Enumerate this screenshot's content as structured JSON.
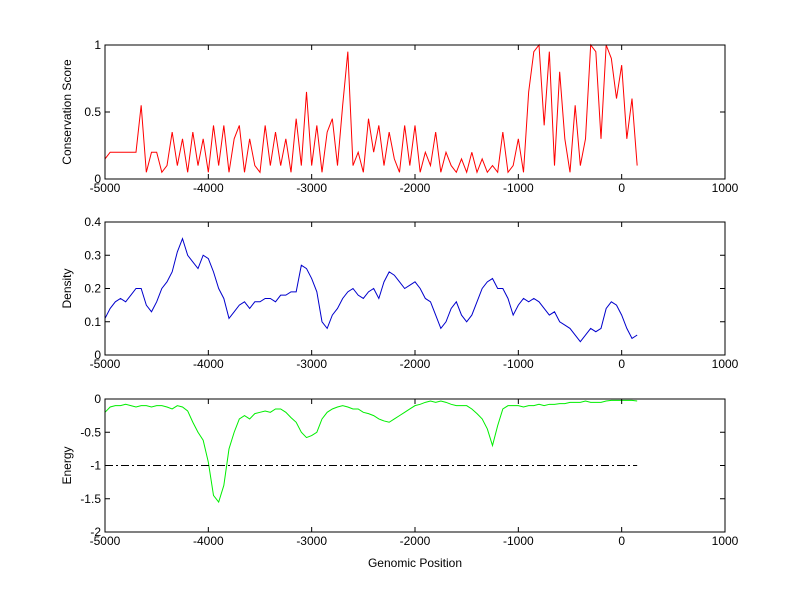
{
  "chart_data": [
    {
      "type": "line",
      "ylabel": "Conservation Score",
      "xlim": [
        -5000,
        1000
      ],
      "ylim": [
        0,
        1
      ],
      "xticks": [
        -5000,
        -4000,
        -3000,
        -2000,
        -1000,
        0,
        1000
      ],
      "yticks": [
        0,
        0.5,
        1
      ],
      "series": [
        {
          "color": "#ff0000",
          "x": [
            -5000,
            -4950,
            -4900,
            -4850,
            -4800,
            -4750,
            -4700,
            -4650,
            -4600,
            -4550,
            -4500,
            -4450,
            -4400,
            -4350,
            -4300,
            -4250,
            -4200,
            -4150,
            -4100,
            -4050,
            -4000,
            -3950,
            -3900,
            -3850,
            -3800,
            -3750,
            -3700,
            -3650,
            -3600,
            -3550,
            -3500,
            -3450,
            -3400,
            -3350,
            -3300,
            -3250,
            -3200,
            -3150,
            -3100,
            -3050,
            -3000,
            -2950,
            -2900,
            -2850,
            -2800,
            -2750,
            -2700,
            -2650,
            -2600,
            -2550,
            -2500,
            -2450,
            -2400,
            -2350,
            -2300,
            -2250,
            -2200,
            -2150,
            -2100,
            -2050,
            -2000,
            -1950,
            -1900,
            -1850,
            -1800,
            -1750,
            -1700,
            -1650,
            -1600,
            -1550,
            -1500,
            -1450,
            -1400,
            -1350,
            -1300,
            -1250,
            -1200,
            -1150,
            -1100,
            -1050,
            -1000,
            -950,
            -900,
            -850,
            -800,
            -750,
            -700,
            -650,
            -600,
            -550,
            -500,
            -450,
            -400,
            -350,
            -300,
            -250,
            -200,
            -150,
            -100,
            -50,
            0,
            50,
            100,
            150
          ],
          "values": [
            0.15,
            0.2,
            0.2,
            0.2,
            0.2,
            0.2,
            0.2,
            0.55,
            0.05,
            0.2,
            0.2,
            0.05,
            0.1,
            0.35,
            0.1,
            0.3,
            0.05,
            0.35,
            0.1,
            0.3,
            0.05,
            0.4,
            0.1,
            0.4,
            0.05,
            0.3,
            0.4,
            0.05,
            0.3,
            0.1,
            0.05,
            0.4,
            0.1,
            0.35,
            0.1,
            0.3,
            0.05,
            0.45,
            0.1,
            0.65,
            0.1,
            0.4,
            0.05,
            0.35,
            0.45,
            0.1,
            0.55,
            0.95,
            0.1,
            0.2,
            0.05,
            0.45,
            0.2,
            0.4,
            0.1,
            0.35,
            0.15,
            0.05,
            0.4,
            0.1,
            0.4,
            0.05,
            0.2,
            0.1,
            0.35,
            0.05,
            0.2,
            0.1,
            0.05,
            0.15,
            0.05,
            0.2,
            0.05,
            0.15,
            0.05,
            0.1,
            0.05,
            0.35,
            0.05,
            0.1,
            0.3,
            0.05,
            0.65,
            0.95,
            1,
            0.4,
            0.95,
            0.1,
            0.8,
            0.3,
            0.05,
            0.55,
            0.1,
            0.3,
            1,
            0.95,
            0.3,
            1,
            0.9,
            0.6,
            0.85,
            0.3,
            0.6,
            0.1
          ]
        }
      ]
    },
    {
      "type": "line",
      "ylabel": "Density",
      "xlim": [
        -5000,
        1000
      ],
      "ylim": [
        0,
        0.4
      ],
      "xticks": [
        -5000,
        -4000,
        -3000,
        -2000,
        -1000,
        0,
        1000
      ],
      "yticks": [
        0,
        0.1,
        0.2,
        0.3,
        0.4
      ],
      "series": [
        {
          "color": "#0000cc",
          "x": [
            -5000,
            -4950,
            -4900,
            -4850,
            -4800,
            -4750,
            -4700,
            -4650,
            -4600,
            -4550,
            -4500,
            -4450,
            -4400,
            -4350,
            -4300,
            -4250,
            -4200,
            -4150,
            -4100,
            -4050,
            -4000,
            -3950,
            -3900,
            -3850,
            -3800,
            -3750,
            -3700,
            -3650,
            -3600,
            -3550,
            -3500,
            -3450,
            -3400,
            -3350,
            -3300,
            -3250,
            -3200,
            -3150,
            -3100,
            -3050,
            -3000,
            -2950,
            -2900,
            -2850,
            -2800,
            -2750,
            -2700,
            -2650,
            -2600,
            -2550,
            -2500,
            -2450,
            -2400,
            -2350,
            -2300,
            -2250,
            -2200,
            -2150,
            -2100,
            -2050,
            -2000,
            -1950,
            -1900,
            -1850,
            -1800,
            -1750,
            -1700,
            -1650,
            -1600,
            -1550,
            -1500,
            -1450,
            -1400,
            -1350,
            -1300,
            -1250,
            -1200,
            -1150,
            -1100,
            -1050,
            -1000,
            -950,
            -900,
            -850,
            -800,
            -750,
            -700,
            -650,
            -600,
            -550,
            -500,
            -450,
            -400,
            -350,
            -300,
            -250,
            -200,
            -150,
            -100,
            -50,
            0,
            50,
            100,
            150
          ],
          "values": [
            0.11,
            0.14,
            0.16,
            0.17,
            0.16,
            0.18,
            0.2,
            0.2,
            0.15,
            0.13,
            0.16,
            0.2,
            0.22,
            0.25,
            0.31,
            0.35,
            0.3,
            0.28,
            0.26,
            0.3,
            0.29,
            0.25,
            0.2,
            0.17,
            0.11,
            0.13,
            0.15,
            0.16,
            0.14,
            0.16,
            0.16,
            0.17,
            0.17,
            0.16,
            0.18,
            0.18,
            0.19,
            0.19,
            0.27,
            0.26,
            0.23,
            0.19,
            0.1,
            0.08,
            0.12,
            0.14,
            0.17,
            0.19,
            0.2,
            0.18,
            0.17,
            0.19,
            0.2,
            0.17,
            0.22,
            0.25,
            0.24,
            0.22,
            0.2,
            0.21,
            0.22,
            0.2,
            0.17,
            0.16,
            0.12,
            0.08,
            0.1,
            0.14,
            0.16,
            0.12,
            0.1,
            0.12,
            0.16,
            0.2,
            0.22,
            0.23,
            0.2,
            0.2,
            0.17,
            0.12,
            0.15,
            0.17,
            0.16,
            0.17,
            0.16,
            0.14,
            0.12,
            0.13,
            0.1,
            0.09,
            0.08,
            0.06,
            0.04,
            0.06,
            0.08,
            0.07,
            0.08,
            0.14,
            0.16,
            0.15,
            0.12,
            0.08,
            0.05,
            0.06
          ]
        }
      ]
    },
    {
      "type": "line",
      "ylabel": "Energy",
      "xlabel": "Genomic Position",
      "xlim": [
        -5000,
        1000
      ],
      "ylim": [
        -2,
        0
      ],
      "xticks": [
        -5000,
        -4000,
        -3000,
        -2000,
        -1000,
        0,
        1000
      ],
      "yticks": [
        -2,
        -1.5,
        -1,
        -0.5,
        0
      ],
      "series": [
        {
          "color": "#00ee00",
          "x": [
            -5000,
            -4950,
            -4900,
            -4850,
            -4800,
            -4750,
            -4700,
            -4650,
            -4600,
            -4550,
            -4500,
            -4450,
            -4400,
            -4350,
            -4300,
            -4250,
            -4200,
            -4150,
            -4100,
            -4050,
            -4000,
            -3950,
            -3900,
            -3850,
            -3800,
            -3750,
            -3700,
            -3650,
            -3600,
            -3550,
            -3500,
            -3450,
            -3400,
            -3350,
            -3300,
            -3250,
            -3200,
            -3150,
            -3100,
            -3050,
            -3000,
            -2950,
            -2900,
            -2850,
            -2800,
            -2750,
            -2700,
            -2650,
            -2600,
            -2550,
            -2500,
            -2450,
            -2400,
            -2350,
            -2300,
            -2250,
            -2200,
            -2150,
            -2100,
            -2050,
            -2000,
            -1950,
            -1900,
            -1850,
            -1800,
            -1750,
            -1700,
            -1650,
            -1600,
            -1550,
            -1500,
            -1450,
            -1400,
            -1350,
            -1300,
            -1250,
            -1200,
            -1150,
            -1100,
            -1050,
            -1000,
            -950,
            -900,
            -850,
            -800,
            -750,
            -700,
            -650,
            -600,
            -550,
            -500,
            -450,
            -400,
            -350,
            -300,
            -250,
            -200,
            -150,
            -100,
            -50,
            0,
            50,
            100,
            150
          ],
          "values": [
            -0.2,
            -0.12,
            -0.1,
            -0.1,
            -0.08,
            -0.1,
            -0.12,
            -0.1,
            -0.1,
            -0.12,
            -0.1,
            -0.1,
            -0.12,
            -0.15,
            -0.1,
            -0.12,
            -0.18,
            -0.35,
            -0.5,
            -0.62,
            -0.95,
            -1.45,
            -1.55,
            -1.3,
            -0.75,
            -0.5,
            -0.3,
            -0.25,
            -0.3,
            -0.22,
            -0.2,
            -0.18,
            -0.2,
            -0.15,
            -0.15,
            -0.2,
            -0.28,
            -0.35,
            -0.5,
            -0.58,
            -0.55,
            -0.5,
            -0.3,
            -0.2,
            -0.15,
            -0.12,
            -0.1,
            -0.12,
            -0.15,
            -0.15,
            -0.2,
            -0.22,
            -0.25,
            -0.3,
            -0.33,
            -0.35,
            -0.3,
            -0.25,
            -0.2,
            -0.15,
            -0.1,
            -0.08,
            -0.05,
            -0.03,
            -0.05,
            -0.03,
            -0.05,
            -0.08,
            -0.1,
            -0.1,
            -0.1,
            -0.15,
            -0.22,
            -0.3,
            -0.45,
            -0.7,
            -0.4,
            -0.15,
            -0.1,
            -0.1,
            -0.1,
            -0.12,
            -0.1,
            -0.1,
            -0.08,
            -0.1,
            -0.08,
            -0.08,
            -0.07,
            -0.07,
            -0.05,
            -0.05,
            -0.05,
            -0.03,
            -0.05,
            -0.05,
            -0.05,
            -0.03,
            -0.02,
            -0.02,
            -0.02,
            -0.02,
            -0.02,
            -0.03
          ]
        },
        {
          "color": "#000000",
          "dash": "dashdot",
          "x": [
            -5000,
            150
          ],
          "values": [
            -1,
            -1
          ]
        }
      ]
    }
  ]
}
